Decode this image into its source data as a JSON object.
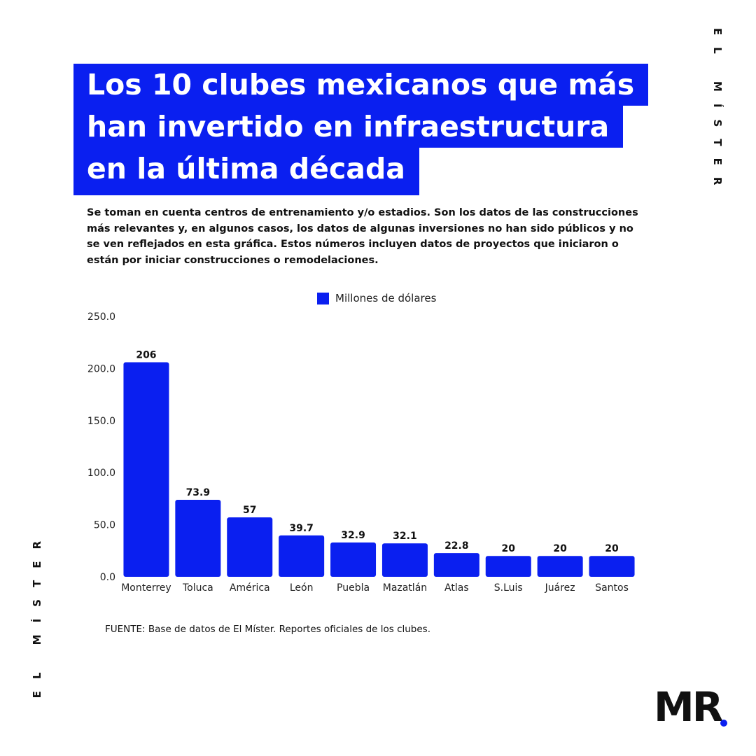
{
  "title_lines": [
    "Los 10 clubes mexicanos que más",
    "han invertido en infraestructura",
    "en la última década"
  ],
  "subtitle": "Se toman en cuenta centros de entrenamiento y/o estadios.  Son los datos de las construcciones más relevantes y, en algunos casos, los datos de algunas inversiones no han sido públicos y no se ven reflejados en esta gráfica. Estos números incluyen datos de proyectos que iniciaron o están por iniciar construcciones o remodelaciones.",
  "brand_vertical": "EL MÍSTER",
  "logo_text": "MR",
  "source": "FUENTE: Base de datos de El Míster. Reportes oficiales de los clubes.",
  "colors": {
    "accent": "#0a1ff0",
    "text": "#111111",
    "background": "#ffffff"
  },
  "chart_data": {
    "type": "bar",
    "categories": [
      "Monterrey",
      "Toluca",
      "América",
      "León",
      "Puebla",
      "Mazatlán",
      "Atlas",
      "S.Luis",
      "Juárez",
      "Santos"
    ],
    "series": [
      {
        "name": "Millones de dólares",
        "values": [
          206,
          73.9,
          57,
          39.7,
          32.9,
          32.1,
          22.8,
          20,
          20,
          20
        ],
        "color": "#0a1ff0"
      }
    ],
    "data_labels": [
      "206",
      "73.9",
      "57",
      "39.7",
      "32.9",
      "32.1",
      "22.8",
      "20",
      "20",
      "20"
    ],
    "ylim": [
      0,
      250
    ],
    "yticks": [
      0,
      50,
      100,
      150,
      200,
      250
    ],
    "ytick_labels": [
      "0.0",
      "50.0",
      "100.0",
      "150.0",
      "200.0",
      "250.0"
    ],
    "grid": false,
    "legend_position": "top-center"
  }
}
